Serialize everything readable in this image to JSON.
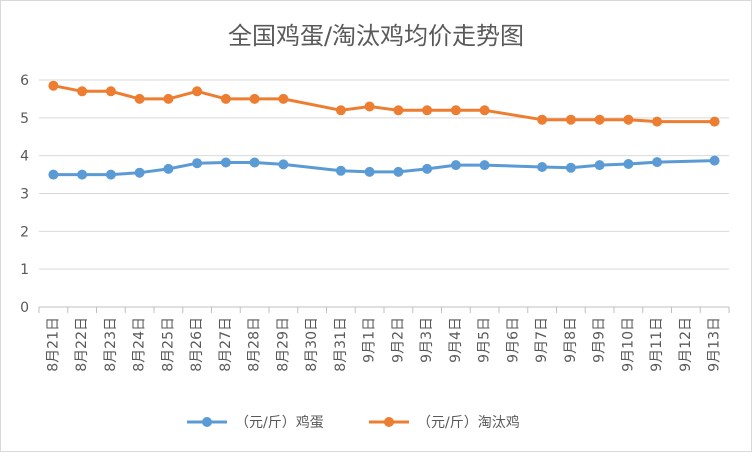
{
  "chart_data": {
    "type": "line",
    "title": "全国鸡蛋/淘汰鸡均价走势图",
    "categories": [
      "8月21日",
      "8月22日",
      "8月23日",
      "8月24日",
      "8月25日",
      "8月26日",
      "8月27日",
      "8月28日",
      "8月29日",
      "8月30日",
      "8月31日",
      "9月1日",
      "9月2日",
      "9月3日",
      "9月4日",
      "9月5日",
      "9月6日",
      "9月7日",
      "9月8日",
      "9月9日",
      "9月10日",
      "9月11日",
      "9月12日",
      "9月13日"
    ],
    "ylim": [
      0,
      6
    ],
    "yticks": [
      "0",
      "1",
      "2",
      "3",
      "4",
      "5",
      "6"
    ],
    "grid": "horizontal",
    "legend_position": "bottom",
    "series": [
      {
        "name": "（元/斤）鸡蛋",
        "color": "#5b9bd5",
        "values": [
          3.5,
          3.5,
          3.5,
          3.55,
          3.65,
          3.8,
          3.82,
          3.82,
          3.77,
          null,
          3.6,
          3.57,
          3.57,
          3.65,
          3.75,
          3.75,
          null,
          3.7,
          3.68,
          3.75,
          3.78,
          3.83,
          null,
          3.87
        ]
      },
      {
        "name": "（元/斤）淘汰鸡",
        "color": "#ed7d31",
        "values": [
          5.85,
          5.7,
          5.7,
          5.5,
          5.5,
          5.7,
          5.5,
          5.5,
          5.5,
          null,
          5.2,
          5.3,
          5.2,
          5.2,
          5.2,
          5.2,
          null,
          4.95,
          4.95,
          4.95,
          4.95,
          4.9,
          null,
          4.9
        ]
      }
    ]
  }
}
